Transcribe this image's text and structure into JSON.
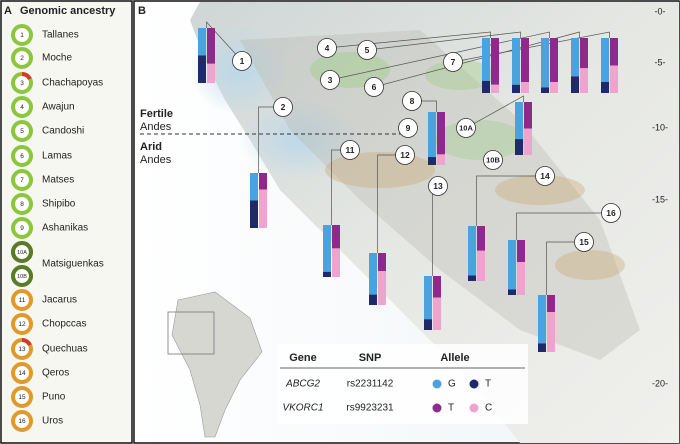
{
  "panel_a": {
    "letter": "A",
    "title": "Genomic ancestry",
    "populations": [
      {
        "id": "1",
        "name": "Tallanes"
      },
      {
        "id": "2",
        "name": "Moche"
      },
      {
        "id": "3",
        "name": "Chachapoyas"
      },
      {
        "id": "4",
        "name": "Awajun"
      },
      {
        "id": "5",
        "name": "Candoshi"
      },
      {
        "id": "6",
        "name": "Lamas"
      },
      {
        "id": "7",
        "name": "Matses"
      },
      {
        "id": "8",
        "name": "Shipibo"
      },
      {
        "id": "9",
        "name": "Ashanikas"
      },
      {
        "id": "10A",
        "name": "Matsiguenkas"
      },
      {
        "id": "10B",
        "name": null
      },
      {
        "id": "11",
        "name": "Jacarus"
      },
      {
        "id": "12",
        "name": "Chopccas"
      },
      {
        "id": "13",
        "name": "Quechuas"
      },
      {
        "id": "14",
        "name": "Qeros"
      },
      {
        "id": "15",
        "name": "Puno"
      },
      {
        "id": "16",
        "name": "Uros"
      }
    ]
  },
  "panel_b": {
    "letter": "B",
    "region_labels": [
      "Fertile",
      "Andes",
      "Arid",
      "Andes"
    ],
    "latitude_labels": [
      "-0-",
      "-5-",
      "-10-",
      "-15-",
      "-20-"
    ],
    "map_markers": [
      "1",
      "2",
      "3",
      "4",
      "5",
      "6",
      "7",
      "8",
      "9",
      "10A",
      "10B",
      "11",
      "12",
      "13",
      "14",
      "15",
      "16"
    ],
    "allele_bars": {
      "series": [
        {
          "name": "G",
          "gene": "ABCG2",
          "color": "#4aa3df",
          "values": [
            50,
            50,
            78,
            85,
            90,
            70,
            80,
            85,
            70,
            90,
            80,
            80,
            90,
            90,
            85
          ]
        },
        {
          "name": "T",
          "gene": "ABCG2",
          "color": "#1f2a6b",
          "values": [
            50,
            50,
            22,
            15,
            10,
            30,
            20,
            15,
            30,
            10,
            20,
            20,
            10,
            10,
            15
          ]
        },
        {
          "name": "T",
          "gene": "VKORC1",
          "color": "#8e2a8c",
          "values": [
            65,
            30,
            85,
            80,
            80,
            55,
            50,
            80,
            50,
            45,
            35,
            40,
            45,
            40,
            30
          ]
        },
        {
          "name": "C",
          "gene": "VKORC1",
          "color": "#efa3cf",
          "values": [
            35,
            70,
            15,
            20,
            20,
            45,
            50,
            20,
            50,
            55,
            65,
            60,
            55,
            60,
            70
          ]
        }
      ]
    },
    "legend_table": {
      "headers": [
        "Gene",
        "SNP",
        "Allele"
      ],
      "rows": [
        [
          "ABCG2",
          "rs2231142"
        ],
        [
          "VKORC1",
          "rs9923231"
        ]
      ]
    }
  }
}
